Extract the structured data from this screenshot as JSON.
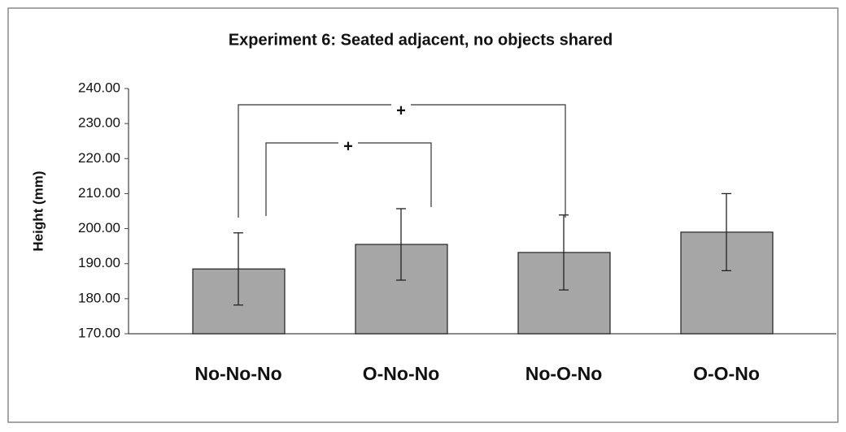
{
  "chart_data": {
    "type": "bar",
    "title": "Experiment 6: Seated adjacent, no objects shared",
    "y_label": "Height (mm)",
    "categories": [
      "No-No-No",
      "O-No-No",
      "No-O-No",
      "O-O-No"
    ],
    "values": [
      188.5,
      195.5,
      193.2,
      199.0
    ],
    "errors": [
      10.3,
      10.2,
      10.7,
      11.0
    ],
    "color": "#a6a6a6",
    "ylim": [
      170,
      240
    ],
    "yticks": [
      {
        "value": 170,
        "label": "170.00"
      },
      {
        "value": 180,
        "label": "180.00"
      },
      {
        "value": 190,
        "label": "190.00"
      },
      {
        "value": 200,
        "label": "200.00"
      },
      {
        "value": 210,
        "label": "210.00"
      },
      {
        "value": 220,
        "label": "220.00"
      },
      {
        "value": 230,
        "label": "230.00"
      },
      {
        "value": 240,
        "label": "240.00"
      }
    ],
    "grid": false,
    "annotations": [
      {
        "text": "+"
      },
      {
        "text": "+"
      }
    ]
  }
}
